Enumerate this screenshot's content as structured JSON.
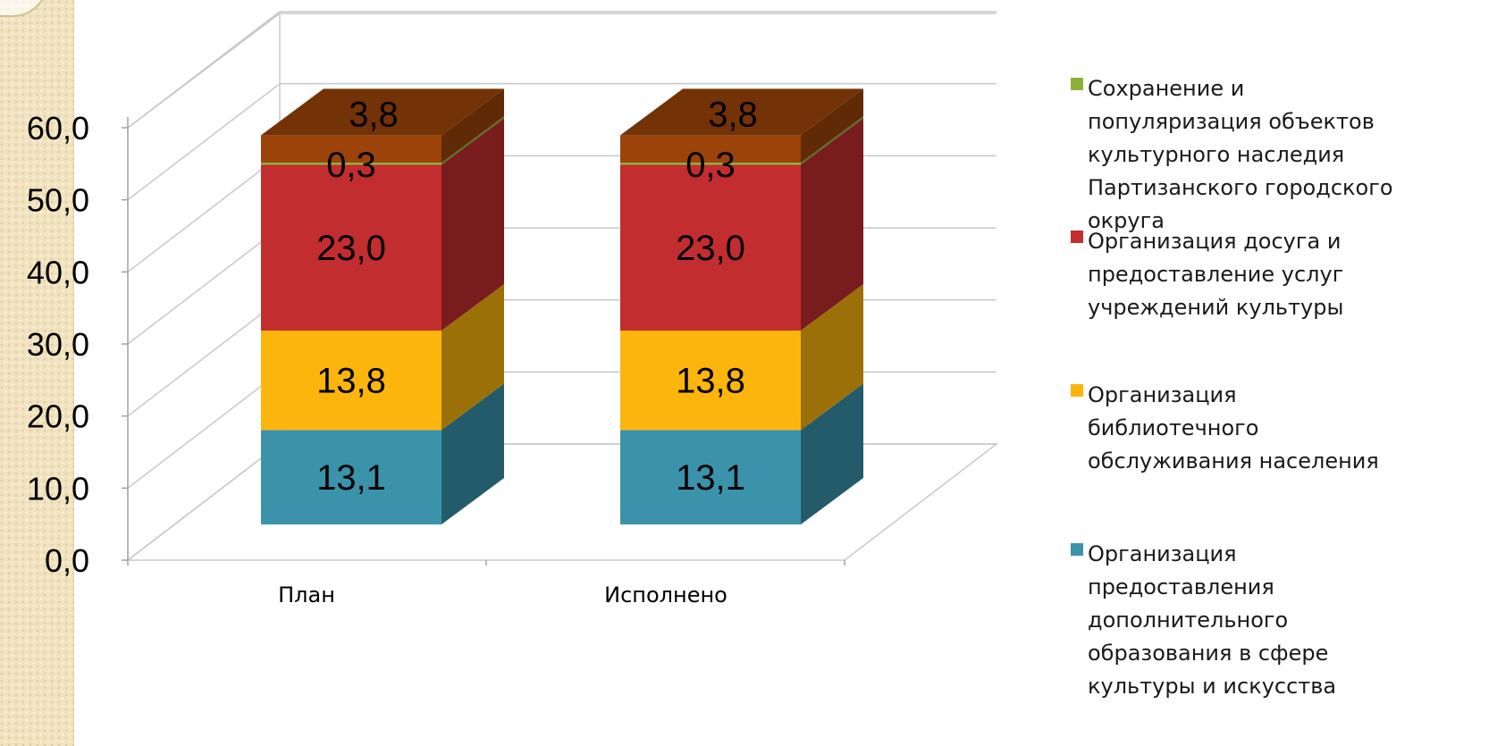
{
  "chart_data": {
    "type": "bar",
    "stacked": true,
    "three_d": true,
    "categories": [
      "План",
      "Исполнено"
    ],
    "series": [
      {
        "name": "Организация предоставления дополнительного образования в сфере культуры и искусства",
        "values": [
          13.1,
          13.1
        ],
        "color": "#3a93ab",
        "label_strings": [
          "13,1",
          "13,1"
        ]
      },
      {
        "name": "Организация библиотечного обслуживания населения",
        "values": [
          13.8,
          13.8
        ],
        "color": "#fbb50d",
        "label_strings": [
          "13,8",
          "13,8"
        ]
      },
      {
        "name": "Организация досуга и предоставление услуг учреждений культуры",
        "values": [
          23.0,
          23.0
        ],
        "color": "#c22d2f",
        "label_strings": [
          "23,0",
          "23,0"
        ]
      },
      {
        "name": "Сохранение и популяризация объектов культурного наследия Партизанского городского округа",
        "values": [
          0.3,
          0.3
        ],
        "color": "#8db23a",
        "label_strings": [
          "0,3",
          "0,3"
        ]
      },
      {
        "name": "",
        "values": [
          3.8,
          3.8
        ],
        "color": "#9b4309",
        "label_strings": [
          "3,8",
          "3,8"
        ]
      }
    ],
    "y_ticks": [
      "0,0",
      "10,0",
      "20,0",
      "30,0",
      "40,0",
      "50,0",
      "60,0"
    ],
    "ylim": [
      0,
      60
    ],
    "grid": true,
    "legend_position": "right"
  },
  "legend": [
    {
      "label": "Сохранение и\nпопуляризация объектов\nкультурного наследия\nПартизанского городского\nокруга",
      "color": "#8db23a"
    },
    {
      "label": "Организация досуга и\nпредоставление услуг\nучреждений культуры",
      "color": "#c22d2f"
    },
    {
      "label": "Организация\nбиблиотечного\nобслуживания населения",
      "color": "#fbb50d"
    },
    {
      "label": "Организация\nпредоставления\nдополнительного\nобразования в сфере\nкультуры и искусства",
      "color": "#3a93ab"
    }
  ]
}
